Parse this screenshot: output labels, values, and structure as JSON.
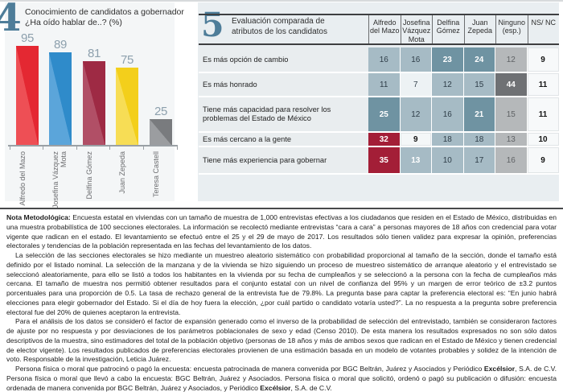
{
  "chart_data": [
    {
      "type": "bar",
      "figure_number": "4",
      "title": "Conocimiento de candidatos a gobernador",
      "subtitle": "¿Ha oído hablar de..? (%)",
      "categories": [
        "Alfredo del Mazo",
        "Josefina Vázquez Mota",
        "Delfina Gómez",
        "Juan Zepeda",
        "Teresa Castell"
      ],
      "values": [
        95,
        89,
        81,
        75,
        25
      ],
      "bar_colors": [
        "#e42832",
        "#2f8bca",
        "#9e2a44",
        "#f3cf1b",
        "#797b7e"
      ],
      "value_label_color": "#8da0ad",
      "ylim": [
        0,
        100
      ],
      "grid": false,
      "bars": [
        {
          "label": "Alfredo del Mazo",
          "value": "95"
        },
        {
          "label": "Josefina Vázquez Mota",
          "value": "89"
        },
        {
          "label": "Delfina Gómez",
          "value": "81"
        },
        {
          "label": "Juan Zepeda",
          "value": "75"
        },
        {
          "label": "Teresa Castell",
          "value": "25"
        }
      ]
    },
    {
      "type": "table",
      "figure_number": "5",
      "title": "Evaluación comparada de atributos de los candidatos",
      "columns": [
        "Alfredo del Mazo",
        "Josefina Vázquez Mota",
        "Delfina Gómez",
        "Juan Zepeda",
        "Ninguno (esp.)",
        "NS/ NC"
      ],
      "highlight_colors": {
        "high_teal": "#6f93a2",
        "top_red": "#a31e37",
        "none_dark": "#6f7174",
        "base_blue": "#a6bbc5",
        "none_gray": "#b5b8ba"
      },
      "rows": [
        {
          "label": "Es más opción de cambio",
          "cells": [
            {
              "v": "16",
              "t": "mid"
            },
            {
              "v": "16",
              "t": "mid"
            },
            {
              "v": "23",
              "t": "hi"
            },
            {
              "v": "24",
              "t": "hi"
            },
            {
              "v": "12",
              "t": "gy"
            },
            {
              "v": "9",
              "t": "ns"
            }
          ]
        },
        {
          "label": "Es más honrado",
          "cells": [
            {
              "v": "11",
              "t": "mid"
            },
            {
              "v": "7",
              "t": "lo"
            },
            {
              "v": "12",
              "t": "mid"
            },
            {
              "v": "15",
              "t": "mid"
            },
            {
              "v": "44",
              "t": "dk"
            },
            {
              "v": "11",
              "t": "ns"
            }
          ]
        },
        {
          "label": "Tiene más capacidad para resolver los problemas del Estado de México",
          "cells": [
            {
              "v": "25",
              "t": "hi"
            },
            {
              "v": "12",
              "t": "mid"
            },
            {
              "v": "16",
              "t": "mid"
            },
            {
              "v": "21",
              "t": "hi"
            },
            {
              "v": "15",
              "t": "gy"
            },
            {
              "v": "11",
              "t": "ns"
            }
          ]
        },
        {
          "label": "Es más cercano a la gente",
          "cells": [
            {
              "v": "32",
              "t": "rd"
            },
            {
              "v": "9",
              "t": "lob"
            },
            {
              "v": "18",
              "t": "mid"
            },
            {
              "v": "18",
              "t": "mid"
            },
            {
              "v": "13",
              "t": "gy"
            },
            {
              "v": "10",
              "t": "ns"
            }
          ]
        },
        {
          "label": "Tiene más experiencia para gobernar",
          "cells": [
            {
              "v": "35",
              "t": "rd"
            },
            {
              "v": "13",
              "t": "midw"
            },
            {
              "v": "10",
              "t": "mid"
            },
            {
              "v": "17",
              "t": "mid"
            },
            {
              "v": "16",
              "t": "gy"
            },
            {
              "v": "9",
              "t": "ns"
            }
          ]
        }
      ]
    }
  ],
  "note": {
    "p1_label": "Nota Metodológica:",
    "p1_text": " Encuesta estatal en viviendas con un tamaño de muestra de 1,000 entrevistas efectivas a los ciudadanos que residen en el Estado de México, distribuidas en una muestra probabilística de 100 secciones electorales. La información se recolectó mediante entrevistas “cara a cara” a personas mayores de 18 años con credencial para votar vigente que radican en el estado. El levantamiento se efectuó entre el 25 y el 29 de mayo de 2017. Los resultados sólo tienen validez para expresar la opinión, preferencias electorales y tendencias de la población representada en las fechas del levantamiento de los datos.",
    "p2": "La selección de las secciones electorales se hizo mediante un muestreo aleatorio sistemático con probabilidad proporcional al tamaño de la sección, donde el tamaño está definido por el listado nominal. La selección de la manzana y de la vivienda se hizo siguiendo un proceso de muestreo sistemático de arranque aleatorio y el entrevistado se seleccionó aleatoriamente, para ello se listó a todos los habitantes en la vivienda por su fecha de cumpleaños y se seleccionó a la persona con la fecha de cumpleaños más cercana. El tamaño de muestra nos permitió obtener resultados para el conjunto estatal con un nivel de confianza del 95% y un margen de error teórico de ±3.2 puntos porcentuales para una proporción de 0.5. La tasa de rechazo general de la entrevista fue de 79.8%. La pregunta base para captar la preferencia electoral es: “En junio habrá elecciones para elegir gobernador del Estado. Si el día de hoy fuera la elección, ¿por cuál partido o candidato votaría usted?”. La no respuesta a la pregunta sobre preferencia electoral fue del 20% de quienes aceptaron la entrevista.",
    "p3": "Para el análisis de los datos se consideró el factor de expansión generado como el inverso de la probabilidad de selección del entrevistado, también se consideraron factores de ajuste por no respuesta y por desviaciones de los parámetros poblacionales de sexo y edad (Censo 2010). De esta manera los resultados expresados no son sólo datos descriptivos de la muestra, sino estimadores del total de la población objetivo (personas de 18 años y más de ambos sexos que radican en el Estado de México y tienen credencial de elector vigente). Los resultados publicados de preferencias electorales provienen de una estimación basada en un modelo de votantes probables y solidez de la intención de voto. Responsable de la investigación, Leticia Juárez.",
    "p4_seg1": "Persona física o moral que patrocinó o pagó la encuesta: encuesta patrocinada de manera convenida por BGC Beltrán, Juárez y Asociados y Periódico ",
    "p4_bold1": "Excélsior",
    "p4_seg2": ", S.A. de C.V. Persona física o moral que llevó a cabo la encuesta: BGC Beltrán, Juárez y Asociados. Persona física o moral que solicitó, ordenó o pagó su publicación o difusión: encuesta ordenada de manera convenida por BGC Beltrán, Juárez y Asociados, y Periódico ",
    "p4_bold2": "Excélsior",
    "p4_seg3": ", S.A. de C.V."
  }
}
